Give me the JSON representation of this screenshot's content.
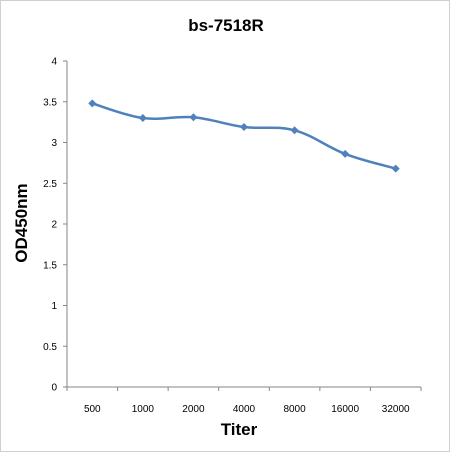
{
  "chart_data": {
    "type": "line",
    "title": "bs-7518R",
    "xlabel": "Titer",
    "ylabel": "OD450nm",
    "categories": [
      "500",
      "1000",
      "2000",
      "4000",
      "8000",
      "16000",
      "32000"
    ],
    "series": [
      {
        "values": [
          3.48,
          3.3,
          3.31,
          3.19,
          3.15,
          2.86,
          2.68
        ]
      }
    ],
    "yticks": [
      "0",
      "0.5",
      "1",
      "1.5",
      "2",
      "2.5",
      "3",
      "3.5",
      "4"
    ],
    "ylim": [
      0,
      4
    ],
    "grid": false,
    "legend": "none",
    "colors": {
      "line": "#4f81bd",
      "marker": "#4f81bd",
      "axis": "#868686"
    }
  }
}
